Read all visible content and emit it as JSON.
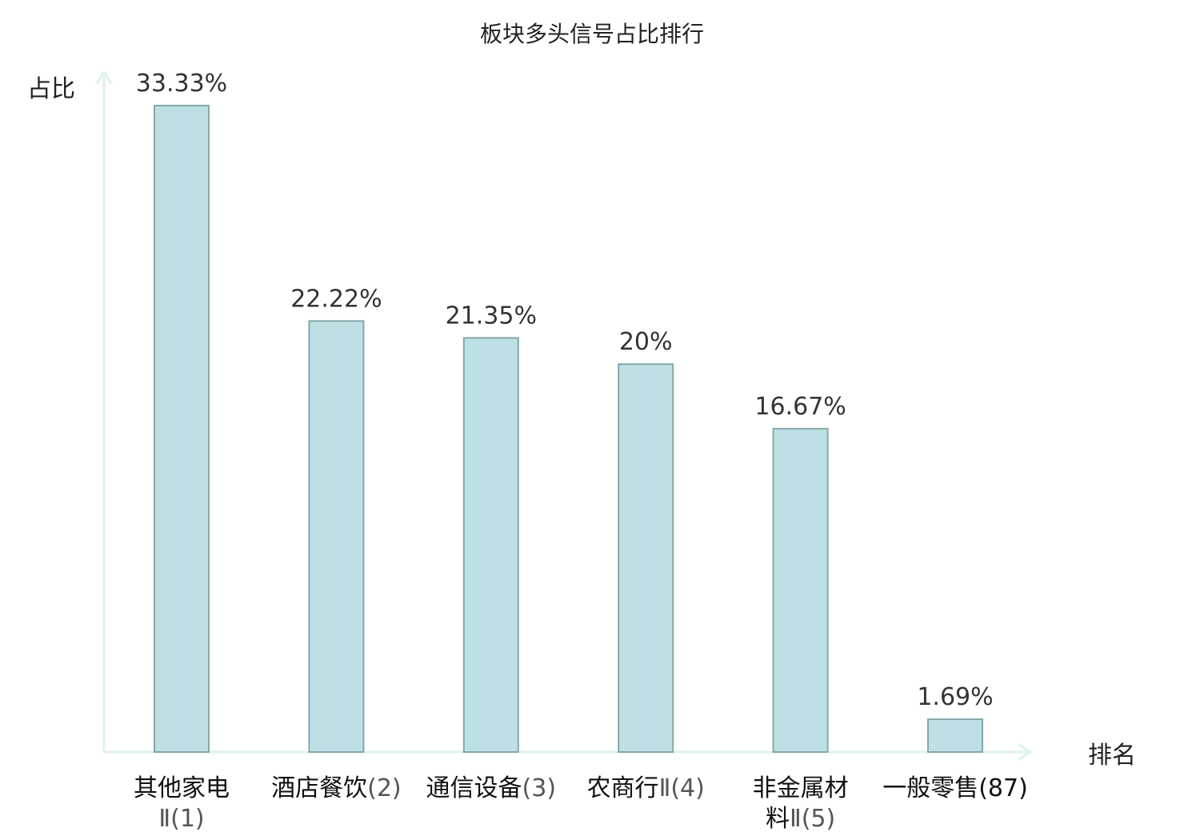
{
  "chart_data": {
    "type": "bar",
    "title": "板块多头信号占比排行",
    "ylabel": "占比",
    "xlabel": "排名",
    "ylim": [
      0,
      35
    ],
    "grid": false,
    "categories": [
      {
        "lines": [
          {
            "name": "其他家电",
            "suffix": ""
          },
          {
            "name": "",
            "suffix": "Ⅱ(1)"
          }
        ],
        "highlight": false
      },
      {
        "lines": [
          {
            "name": "酒店餐饮",
            "suffix": "(2)"
          }
        ],
        "highlight": false
      },
      {
        "lines": [
          {
            "name": "通信设备",
            "suffix": "(3)"
          }
        ],
        "highlight": false
      },
      {
        "lines": [
          {
            "name": "农商行",
            "suffix": "Ⅱ(4)"
          }
        ],
        "highlight": false
      },
      {
        "lines": [
          {
            "name": "非金属材",
            "suffix": ""
          },
          {
            "name": "料",
            "suffix": "Ⅱ(5)"
          }
        ],
        "highlight": false
      },
      {
        "lines": [
          {
            "name": "一般零售",
            "suffix": "(87)"
          }
        ],
        "highlight": true
      }
    ],
    "values": [
      33.33,
      22.22,
      21.35,
      20,
      16.67,
      1.69
    ],
    "value_labels": [
      "33.33%",
      "22.22%",
      "21.35%",
      "20%",
      "16.67%",
      "1.69%"
    ]
  },
  "colors": {
    "bar_fill": "#bce0e3",
    "bar_stroke": "#86a8a9",
    "axis": "#dff2ef",
    "highlight": "#e0201c"
  }
}
